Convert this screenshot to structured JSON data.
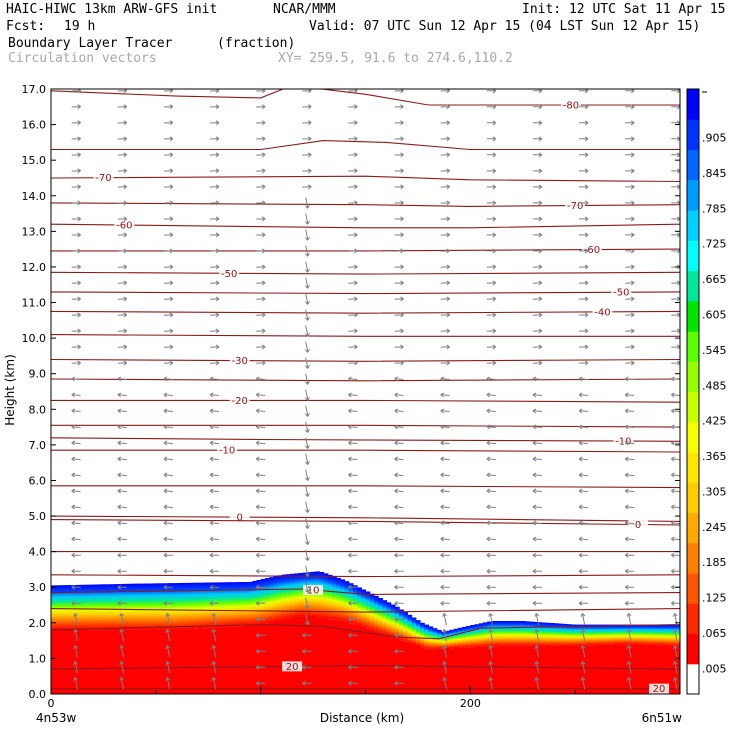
{
  "header": {
    "title": "HAIC-HIWC 13km ARW-GFS init",
    "org": "NCAR/MMM",
    "init": "Init: 12 UTC Sat 11 Apr 15",
    "fcst_label": "Fcst:",
    "fcst_value": "19 h",
    "valid": "Valid: 07 UTC Sun 12 Apr 15 (04 LST Sun 12 Apr 15)",
    "field": "Boundary Layer Tracer",
    "field_units": "(fraction)",
    "vectors": "Circulation vectors",
    "xy": "XY= 259.5, 91.6 to 274.6,110.2"
  },
  "colors": {
    "contour": "#8b1a1a",
    "vector": "#808080",
    "colorbar": [
      "#ffffff",
      "#ff0000",
      "#ff2a00",
      "#ff5500",
      "#ff8000",
      "#ffaa00",
      "#ffcc00",
      "#ffe600",
      "#f5ff00",
      "#c8ff00",
      "#96ff00",
      "#5aff00",
      "#00e600",
      "#00e69a",
      "#00ffff",
      "#00d0ff",
      "#009bff",
      "#0066ff",
      "#0033ff",
      "#0000ff"
    ]
  },
  "chart_data": {
    "type": "heatmap",
    "xlabel": "Distance (km)",
    "ylabel": "Height (km)",
    "xlim": [
      0,
      300
    ],
    "ylim": [
      0.0,
      17.0
    ],
    "x_ticks": [
      {
        "value": 0,
        "label": "0"
      },
      {
        "value": 200,
        "label": "200"
      }
    ],
    "x_end_labels": {
      "left": "4n53w",
      "right": "6n51w"
    },
    "y_ticks": [
      "0.0",
      "1.0",
      "2.0",
      "3.0",
      "4.0",
      "5.0",
      "6.0",
      "7.0",
      "8.0",
      "9.0",
      "10.0",
      "11.0",
      "12.0",
      "13.0",
      "14.0",
      "15.0",
      "16.0",
      "17.0"
    ],
    "colorbar_labels": [
      ".005",
      ".065",
      ".125",
      ".185",
      ".245",
      ".305",
      ".365",
      ".425",
      ".485",
      ".545",
      ".605",
      ".665",
      ".725",
      ".785",
      ".845",
      ".905"
    ],
    "tracer_top_km": [
      {
        "x": 0,
        "y": 3.05
      },
      {
        "x": 40,
        "y": 3.1
      },
      {
        "x": 95,
        "y": 3.15
      },
      {
        "x": 110,
        "y": 3.35
      },
      {
        "x": 128,
        "y": 3.45
      },
      {
        "x": 140,
        "y": 3.2
      },
      {
        "x": 152,
        "y": 2.85
      },
      {
        "x": 165,
        "y": 2.45
      },
      {
        "x": 177,
        "y": 2.0
      },
      {
        "x": 187,
        "y": 1.75
      },
      {
        "x": 198,
        "y": 1.9
      },
      {
        "x": 210,
        "y": 2.05
      },
      {
        "x": 225,
        "y": 2.05
      },
      {
        "x": 250,
        "y": 1.95
      },
      {
        "x": 275,
        "y": 1.95
      },
      {
        "x": 300,
        "y": 1.95
      }
    ],
    "tracer_full_km": [
      {
        "x": 0,
        "y": 1.8
      },
      {
        "x": 60,
        "y": 1.8
      },
      {
        "x": 100,
        "y": 1.95
      },
      {
        "x": 120,
        "y": 2.2
      },
      {
        "x": 140,
        "y": 2.05
      },
      {
        "x": 165,
        "y": 1.55
      },
      {
        "x": 180,
        "y": 1.25
      },
      {
        "x": 195,
        "y": 1.3
      },
      {
        "x": 215,
        "y": 1.35
      },
      {
        "x": 245,
        "y": 1.35
      },
      {
        "x": 275,
        "y": 1.4
      },
      {
        "x": 300,
        "y": 1.35
      }
    ],
    "isotherms": [
      {
        "label": "-80",
        "label_x": 248,
        "pts": [
          {
            "x": 0,
            "y": 16.95
          },
          {
            "x": 60,
            "y": 16.8
          },
          {
            "x": 100,
            "y": 16.75
          },
          {
            "x": 115,
            "y": 17.1
          },
          {
            "x": 150,
            "y": 16.85
          },
          {
            "x": 180,
            "y": 16.55
          },
          {
            "x": 300,
            "y": 16.55
          }
        ]
      },
      {
        "x_note": "",
        "label": "",
        "label_x": 0,
        "pts": [
          {
            "x": 0,
            "y": 15.3
          },
          {
            "x": 100,
            "y": 15.3
          },
          {
            "x": 130,
            "y": 15.55
          },
          {
            "x": 160,
            "y": 15.5
          },
          {
            "x": 200,
            "y": 15.3
          },
          {
            "x": 300,
            "y": 15.3
          }
        ]
      },
      {
        "label": "-70",
        "label_x": 25,
        "pts": [
          {
            "x": 0,
            "y": 14.5
          },
          {
            "x": 150,
            "y": 14.55
          },
          {
            "x": 200,
            "y": 14.45
          },
          {
            "x": 300,
            "y": 14.4
          }
        ]
      },
      {
        "label": "-70",
        "label_x": 250,
        "pts": [
          {
            "x": 0,
            "y": 13.8
          },
          {
            "x": 150,
            "y": 13.75
          },
          {
            "x": 200,
            "y": 13.7
          },
          {
            "x": 300,
            "y": 13.75
          }
        ]
      },
      {
        "label": "-60",
        "label_x": 35,
        "pts": [
          {
            "x": 0,
            "y": 13.2
          },
          {
            "x": 150,
            "y": 13.1
          },
          {
            "x": 200,
            "y": 13.1
          },
          {
            "x": 300,
            "y": 13.2
          }
        ]
      },
      {
        "label": "-60",
        "label_x": 258,
        "pts": [
          {
            "x": 0,
            "y": 12.45
          },
          {
            "x": 150,
            "y": 12.45
          },
          {
            "x": 300,
            "y": 12.5
          }
        ]
      },
      {
        "label": "-50",
        "label_x": 85,
        "pts": [
          {
            "x": 0,
            "y": 11.85
          },
          {
            "x": 150,
            "y": 11.8
          },
          {
            "x": 300,
            "y": 11.85
          }
        ]
      },
      {
        "label": "-50",
        "label_x": 272,
        "pts": [
          {
            "x": 0,
            "y": 11.3
          },
          {
            "x": 150,
            "y": 11.25
          },
          {
            "x": 300,
            "y": 11.3
          }
        ]
      },
      {
        "label": "-40",
        "label_x": 263,
        "pts": [
          {
            "x": 0,
            "y": 10.75
          },
          {
            "x": 150,
            "y": 10.7
          },
          {
            "x": 300,
            "y": 10.75
          }
        ]
      },
      {
        "label": "",
        "label_x": 0,
        "pts": [
          {
            "x": 0,
            "y": 10.1
          },
          {
            "x": 150,
            "y": 10.05
          },
          {
            "x": 300,
            "y": 10.05
          }
        ]
      },
      {
        "label": "-30",
        "label_x": 90,
        "pts": [
          {
            "x": 0,
            "y": 9.4
          },
          {
            "x": 150,
            "y": 9.35
          },
          {
            "x": 300,
            "y": 9.4
          }
        ]
      },
      {
        "label": "",
        "label_x": 0,
        "pts": [
          {
            "x": 0,
            "y": 8.85
          },
          {
            "x": 150,
            "y": 8.8
          },
          {
            "x": 300,
            "y": 8.85
          }
        ]
      },
      {
        "label": "-20",
        "label_x": 90,
        "pts": [
          {
            "x": 0,
            "y": 8.25
          },
          {
            "x": 150,
            "y": 8.25
          },
          {
            "x": 300,
            "y": 8.2
          }
        ]
      },
      {
        "label": "",
        "label_x": 0,
        "pts": [
          {
            "x": 0,
            "y": 7.55
          },
          {
            "x": 150,
            "y": 7.55
          },
          {
            "x": 300,
            "y": 7.5
          }
        ]
      },
      {
        "label": "-10",
        "label_x": 84,
        "pts": [
          {
            "x": 0,
            "y": 6.85
          },
          {
            "x": 150,
            "y": 6.85
          },
          {
            "x": 300,
            "y": 6.8
          }
        ]
      },
      {
        "label": "-10",
        "label_x": 273,
        "pts": [
          {
            "x": 0,
            "y": 7.2
          },
          {
            "x": 100,
            "y": 7.15
          },
          {
            "x": 300,
            "y": 7.1
          }
        ]
      },
      {
        "label": "",
        "label_x": 0,
        "pts": [
          {
            "x": 0,
            "y": 5.85
          },
          {
            "x": 150,
            "y": 5.85
          },
          {
            "x": 300,
            "y": 5.8
          }
        ]
      },
      {
        "label": "0",
        "label_x": 90,
        "pts": [
          {
            "x": 0,
            "y": 5.0
          },
          {
            "x": 150,
            "y": 4.95
          },
          {
            "x": 300,
            "y": 4.85
          }
        ]
      },
      {
        "label": "0",
        "label_x": 280,
        "pts": [
          {
            "x": 0,
            "y": 4.9
          },
          {
            "x": 150,
            "y": 4.85
          },
          {
            "x": 300,
            "y": 4.75
          }
        ]
      },
      {
        "label": "",
        "label_x": 0,
        "pts": [
          {
            "x": 0,
            "y": 4.0
          },
          {
            "x": 150,
            "y": 4.0
          },
          {
            "x": 300,
            "y": 4.0
          }
        ]
      },
      {
        "label": "",
        "label_x": 0,
        "pts": [
          {
            "x": 0,
            "y": 3.35
          },
          {
            "x": 150,
            "y": 3.3
          },
          {
            "x": 300,
            "y": 3.35
          }
        ]
      },
      {
        "label": "10",
        "label_x": 125,
        "pts": [
          {
            "x": 0,
            "y": 2.85
          },
          {
            "x": 120,
            "y": 2.95
          },
          {
            "x": 150,
            "y": 2.8
          },
          {
            "x": 300,
            "y": 2.85
          }
        ]
      },
      {
        "label": "",
        "label_x": 0,
        "pts": [
          {
            "x": 0,
            "y": 2.4
          },
          {
            "x": 150,
            "y": 2.3
          },
          {
            "x": 300,
            "y": 2.4
          }
        ]
      },
      {
        "label": "",
        "label_x": 0,
        "pts": [
          {
            "x": 0,
            "y": 1.8
          },
          {
            "x": 100,
            "y": 1.95
          },
          {
            "x": 130,
            "y": 1.9
          },
          {
            "x": 165,
            "y": 1.6
          },
          {
            "x": 185,
            "y": 1.55
          },
          {
            "x": 205,
            "y": 1.85
          },
          {
            "x": 300,
            "y": 1.95
          }
        ]
      },
      {
        "label": "20",
        "label_x": 115,
        "pts": [
          {
            "x": 0,
            "y": 0.7
          },
          {
            "x": 150,
            "y": 0.8
          },
          {
            "x": 300,
            "y": 0.7
          }
        ]
      },
      {
        "label": "20",
        "label_x": 290,
        "pts": [
          {
            "x": 0,
            "y": 0.15
          },
          {
            "x": 150,
            "y": 0.15
          },
          {
            "x": 300,
            "y": 0.15
          }
        ]
      }
    ],
    "vectors_grid": {
      "dx_km": 22,
      "dz_km": 0.45
    },
    "grid": false
  }
}
